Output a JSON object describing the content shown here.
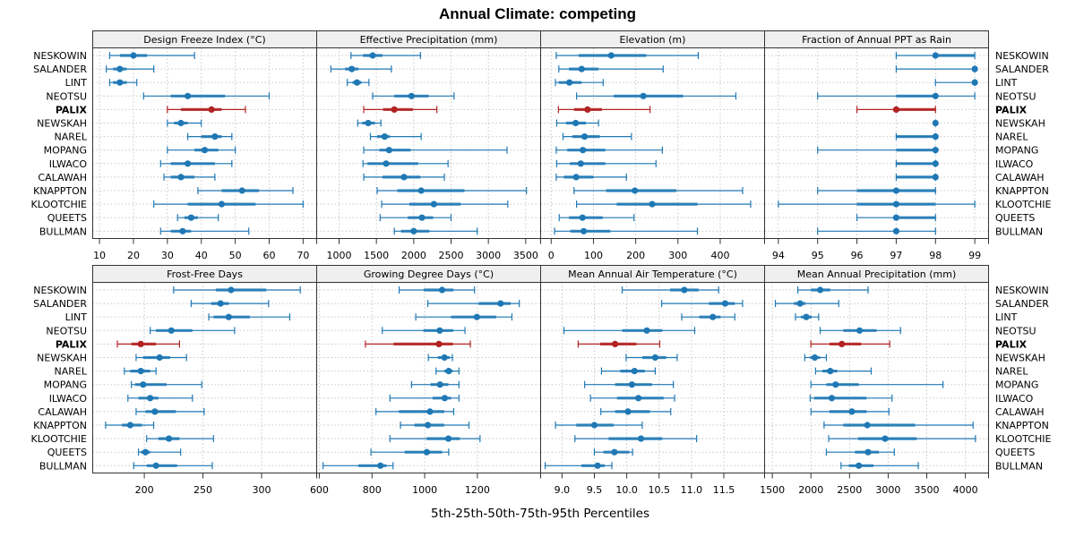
{
  "chart_data": {
    "type": "dot-interval",
    "title": "Annual Climate: competing",
    "xlabel": "5th-25th-50th-75th-95th Percentiles",
    "layout": "2 rows x 4 columns",
    "sites": [
      "NESKOWIN",
      "SALANDER",
      "LINT",
      "NEOTSU",
      "PALIX",
      "NEWSKAH",
      "NAREL",
      "MOPANG",
      "ILWACO",
      "CALAWAH",
      "KNAPPTON",
      "KLOOTCHIE",
      "QUEETS",
      "BULLMAN"
    ],
    "highlight_site": "PALIX",
    "colors": {
      "default": "#1f78b4",
      "highlight": "#b22222",
      "strip_bg": "#efefef",
      "grid": "#c8c8c8"
    },
    "panels": [
      {
        "title": "Design Freeze Index (°C)",
        "xlim": [
          8,
          74
        ],
        "ticks": [
          10,
          20,
          30,
          40,
          50,
          60,
          70
        ],
        "values": {
          "NESKOWIN": [
            13,
            16,
            20,
            24,
            38
          ],
          "SALANDER": [
            12,
            14,
            16,
            18,
            26
          ],
          "LINT": [
            13,
            14,
            16,
            18,
            21
          ],
          "NEOTSU": [
            23,
            31,
            36,
            47,
            60
          ],
          "PALIX": [
            30,
            34,
            43,
            46,
            53
          ],
          "NEWSKAH": [
            30,
            32,
            34,
            36,
            40
          ],
          "NAREL": [
            36,
            40,
            44,
            46,
            49
          ],
          "MOPANG": [
            30,
            38,
            41,
            45,
            50
          ],
          "ILWACO": [
            28,
            31,
            36,
            44,
            49
          ],
          "CALAWAH": [
            29,
            31,
            34,
            38,
            44
          ],
          "KNAPPTON": [
            39,
            46,
            52,
            57,
            67
          ],
          "KLOOTCHIE": [
            26,
            36,
            46,
            56,
            70
          ],
          "QUEETS": [
            33,
            35,
            37,
            39,
            45
          ],
          "BULLMAN": [
            28,
            31,
            34.5,
            37,
            54
          ]
        }
      },
      {
        "title": "Effective Precipitation (mm)",
        "xlim": [
          700,
          3700
        ],
        "ticks": [
          1000,
          1500,
          2000,
          2500,
          3000,
          3500
        ],
        "values": {
          "NESKOWIN": [
            1160,
            1320,
            1450,
            1580,
            2090
          ],
          "SALANDER": [
            890,
            1080,
            1170,
            1260,
            1700
          ],
          "LINT": [
            1110,
            1180,
            1240,
            1300,
            1400
          ],
          "NEOTSU": [
            1450,
            1740,
            1970,
            2200,
            2540
          ],
          "PALIX": [
            1330,
            1590,
            1740,
            1990,
            2310
          ],
          "NEWSKAH": [
            1250,
            1310,
            1390,
            1480,
            1560
          ],
          "NAREL": [
            1420,
            1510,
            1610,
            1680,
            2100
          ],
          "MOPANG": [
            1330,
            1540,
            1670,
            1960,
            3250
          ],
          "ILWACO": [
            1320,
            1380,
            1630,
            2060,
            2460
          ],
          "CALAWAH": [
            1330,
            1580,
            1870,
            2090,
            2410
          ],
          "KNAPPTON": [
            1510,
            1780,
            2100,
            2680,
            3510
          ],
          "KLOOTCHIE": [
            1570,
            1940,
            2270,
            2630,
            3260
          ],
          "QUEETS": [
            1550,
            1920,
            2110,
            2260,
            2500
          ],
          "BULLMAN": [
            1740,
            1830,
            2000,
            2210,
            2850
          ]
        }
      },
      {
        "title": "Elevation (m)",
        "xlim": [
          -25,
          505
        ],
        "ticks": [
          0,
          100,
          200,
          300,
          400
        ],
        "values": {
          "NESKOWIN": [
            12,
            65,
            142,
            225,
            348
          ],
          "SALANDER": [
            18,
            42,
            72,
            112,
            265
          ],
          "LINT": [
            10,
            18,
            43,
            72,
            123
          ],
          "NEOTSU": [
            60,
            148,
            218,
            312,
            437
          ],
          "PALIX": [
            17,
            54,
            86,
            120,
            234
          ],
          "NEWSKAH": [
            13,
            35,
            58,
            82,
            112
          ],
          "NAREL": [
            28,
            50,
            79,
            115,
            190
          ],
          "MOPANG": [
            12,
            38,
            75,
            128,
            263
          ],
          "ILWACO": [
            13,
            44,
            70,
            128,
            248
          ],
          "CALAWAH": [
            12,
            30,
            59,
            100,
            178
          ],
          "KNAPPTON": [
            54,
            130,
            198,
            296,
            453
          ],
          "KLOOTCHIE": [
            60,
            155,
            239,
            346,
            472
          ],
          "QUEETS": [
            19,
            42,
            74,
            122,
            196
          ],
          "BULLMAN": [
            8,
            45,
            77,
            140,
            346
          ]
        }
      },
      {
        "title": "Fraction of Annual PPT as Rain",
        "xlim": [
          93.65,
          99.35
        ],
        "ticks": [
          94,
          95,
          96,
          97,
          98,
          99
        ],
        "values": {
          "NESKOWIN": [
            97,
            98,
            98,
            99,
            99
          ],
          "SALANDER": [
            97,
            99,
            99,
            99,
            99
          ],
          "LINT": [
            98,
            99,
            99,
            99,
            99
          ],
          "NEOTSU": [
            95,
            97,
            98,
            98,
            99
          ],
          "PALIX": [
            96,
            97,
            97,
            98,
            98
          ],
          "NEWSKAH": [
            98,
            98,
            98,
            98,
            98
          ],
          "NAREL": [
            97,
            97,
            98,
            98,
            98
          ],
          "MOPANG": [
            95,
            97,
            98,
            98,
            98
          ],
          "ILWACO": [
            97,
            97,
            98,
            98,
            98
          ],
          "CALAWAH": [
            97,
            97,
            98,
            98,
            98
          ],
          "KNAPPTON": [
            95,
            96,
            97,
            98,
            98
          ],
          "KLOOTCHIE": [
            94,
            96,
            97,
            98,
            99
          ],
          "QUEETS": [
            96,
            97,
            97,
            98,
            98
          ],
          "BULLMAN": [
            95,
            97,
            97,
            97,
            98
          ]
        }
      },
      {
        "title": "Frost-Free Days",
        "xlim": [
          156,
          347
        ],
        "ticks": [
          200,
          250,
          300
        ],
        "values": {
          "NESKOWIN": [
            225,
            261,
            274,
            304,
            333
          ],
          "SALANDER": [
            240,
            257,
            265,
            272,
            306
          ],
          "LINT": [
            255,
            259,
            272,
            290,
            324
          ],
          "NEOTSU": [
            205,
            210,
            223,
            241,
            277
          ],
          "PALIX": [
            177,
            189,
            197,
            210,
            230
          ],
          "NEWSKAH": [
            193,
            199,
            213,
            222,
            236
          ],
          "NAREL": [
            183,
            188,
            197,
            205,
            210
          ],
          "MOPANG": [
            189,
            192,
            199,
            219,
            249
          ],
          "ILWACO": [
            186,
            195,
            205,
            212,
            241
          ],
          "CALAWAH": [
            193,
            201,
            209,
            227,
            251
          ],
          "KNAPPTON": [
            167,
            181,
            188,
            198,
            208
          ],
          "KLOOTCHIE": [
            202,
            212,
            221,
            230,
            259
          ],
          "QUEETS": [
            195,
            197,
            201,
            205,
            231
          ],
          "BULLMAN": [
            191,
            202,
            210,
            228,
            258
          ]
        }
      },
      {
        "title": "Growing Degree Days (°C)",
        "xlim": [
          590,
          1440
        ],
        "ticks": [
          600,
          800,
          1000,
          1200
        ],
        "values": {
          "NESKOWIN": [
            903,
            996,
            1066,
            1109,
            1189
          ],
          "SALANDER": [
            1012,
            1205,
            1288,
            1326,
            1359
          ],
          "LINT": [
            966,
            1100,
            1198,
            1271,
            1331
          ],
          "NEOTSU": [
            839,
            995,
            1057,
            1108,
            1153
          ],
          "PALIX": [
            775,
            882,
            1054,
            1107,
            1173
          ],
          "NEWSKAH": [
            1014,
            1050,
            1075,
            1095,
            1105
          ],
          "NAREL": [
            1043,
            1074,
            1091,
            1106,
            1130
          ],
          "MOPANG": [
            950,
            1022,
            1058,
            1090,
            1130
          ],
          "ILWACO": [
            868,
            1030,
            1076,
            1100,
            1130
          ],
          "CALAWAH": [
            815,
            902,
            1020,
            1074,
            1110
          ],
          "KNAPPTON": [
            908,
            961,
            1012,
            1074,
            1168
          ],
          "KLOOTCHIE": [
            868,
            1007,
            1090,
            1133,
            1210
          ],
          "QUEETS": [
            796,
            924,
            1008,
            1066,
            1091
          ],
          "BULLMAN": [
            614,
            748,
            832,
            855,
            880
          ]
        }
      },
      {
        "title": "Mean Annual Air Temperature (°C)",
        "xlim": [
          8.67,
          12.13
        ],
        "ticks": [
          9.0,
          9.5,
          10.0,
          10.5,
          11.0,
          11.5
        ],
        "values": {
          "NESKOWIN": [
            9.93,
            10.67,
            10.89,
            11.11,
            11.42
          ],
          "SALANDER": [
            10.54,
            11.27,
            11.52,
            11.67,
            11.79
          ],
          "LINT": [
            10.85,
            11.12,
            11.33,
            11.45,
            11.67
          ],
          "NEOTSU": [
            9.03,
            9.93,
            10.31,
            10.55,
            11.05
          ],
          "PALIX": [
            9.25,
            9.59,
            9.82,
            10.15,
            10.51
          ],
          "NEWSKAH": [
            9.99,
            10.24,
            10.44,
            10.61,
            10.78
          ],
          "NAREL": [
            9.61,
            9.9,
            10.12,
            10.28,
            10.44
          ],
          "MOPANG": [
            9.35,
            9.82,
            10.08,
            10.39,
            10.72
          ],
          "ILWACO": [
            9.44,
            9.85,
            10.18,
            10.57,
            10.74
          ],
          "CALAWAH": [
            9.6,
            9.82,
            10.02,
            10.36,
            10.68
          ],
          "KNAPPTON": [
            8.9,
            9.22,
            9.5,
            9.8,
            10.24
          ],
          "KLOOTCHIE": [
            9.2,
            9.72,
            10.22,
            10.55,
            11.08
          ],
          "QUEETS": [
            9.5,
            9.64,
            9.81,
            10.04,
            10.09
          ],
          "BULLMAN": [
            8.74,
            9.3,
            9.55,
            9.66,
            9.77
          ]
        }
      },
      {
        "title": "Mean Annual Precipitation (mm)",
        "xlim": [
          1400,
          4300
        ],
        "ticks": [
          1500,
          2000,
          2500,
          3000,
          3500,
          4000
        ],
        "values": {
          "NESKOWIN": [
            1830,
            2000,
            2120,
            2250,
            2740
          ],
          "SALANDER": [
            1540,
            1780,
            1860,
            1930,
            2360
          ],
          "LINT": [
            1800,
            1870,
            1940,
            2010,
            2100
          ],
          "NEOTSU": [
            2120,
            2420,
            2630,
            2850,
            3160
          ],
          "PALIX": [
            2000,
            2240,
            2400,
            2650,
            3020
          ],
          "NEWSKAH": [
            1920,
            1990,
            2050,
            2120,
            2200
          ],
          "NAREL": [
            2060,
            2150,
            2250,
            2340,
            2780
          ],
          "MOPANG": [
            2000,
            2200,
            2320,
            2620,
            3710
          ],
          "ILWACO": [
            1990,
            2040,
            2270,
            2720,
            3050
          ],
          "CALAWAH": [
            2000,
            2240,
            2530,
            2720,
            3010
          ],
          "KNAPPTON": [
            2170,
            2420,
            2730,
            3350,
            4100
          ],
          "KLOOTCHIE": [
            2230,
            2610,
            2960,
            3370,
            4130
          ],
          "QUEETS": [
            2200,
            2570,
            2740,
            2880,
            3080
          ],
          "BULLMAN": [
            2390,
            2490,
            2620,
            2810,
            3390
          ]
        }
      }
    ]
  }
}
